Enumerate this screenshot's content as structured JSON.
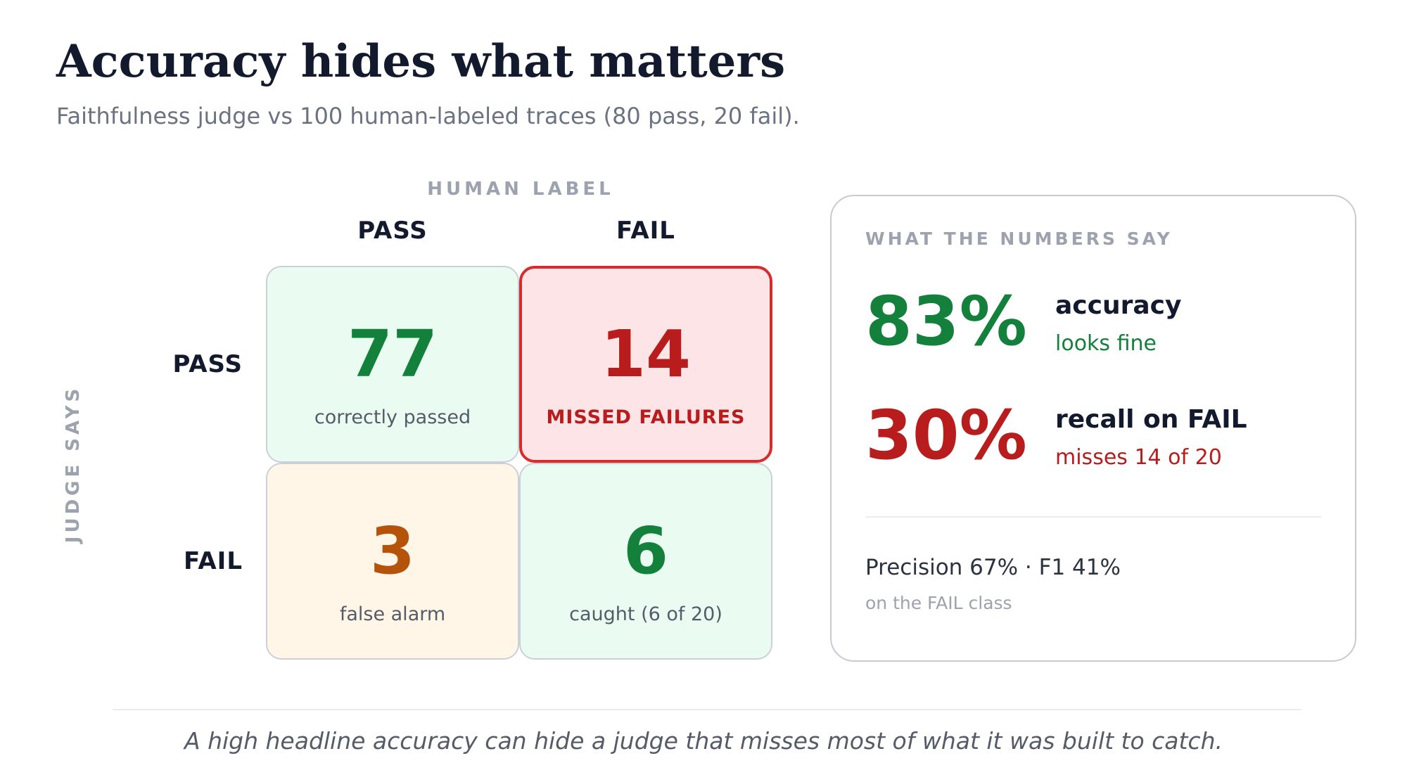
{
  "header": {
    "title": "Accuracy hides what matters",
    "subtitle": "Faithfulness judge vs 100 human-labeled traces (80 pass, 20 fail)."
  },
  "matrix": {
    "column_axis_label": "HUMAN LABEL",
    "row_axis_label": "JUDGE SAYS",
    "columns": [
      "PASS",
      "FAIL"
    ],
    "rows": [
      "PASS",
      "FAIL"
    ],
    "cells": {
      "pass_pass": {
        "value": "77",
        "caption": "correctly passed"
      },
      "pass_fail": {
        "value": "14",
        "caption": "MISSED FAILURES"
      },
      "fail_pass": {
        "value": "3",
        "caption": "false alarm"
      },
      "fail_fail": {
        "value": "6",
        "caption": "caught (6 of 20)"
      }
    }
  },
  "panel": {
    "title": "WHAT THE NUMBERS SAY",
    "stats": [
      {
        "value": "83%",
        "label": "accuracy",
        "sub": "looks fine"
      },
      {
        "value": "30%",
        "label": "recall on FAIL",
        "sub": "misses 14 of 20"
      }
    ],
    "extra": "Precision 67%  ·  F1 41%",
    "extra_sub": "on the FAIL class"
  },
  "footer": {
    "note": "A high headline accuracy can hide a judge that misses most of what it was built to catch."
  },
  "colors": {
    "good_green": "#13813c",
    "bad_red": "#b91c1c",
    "warn_orange": "#b45309",
    "highlight_border": "#d62c2c"
  }
}
